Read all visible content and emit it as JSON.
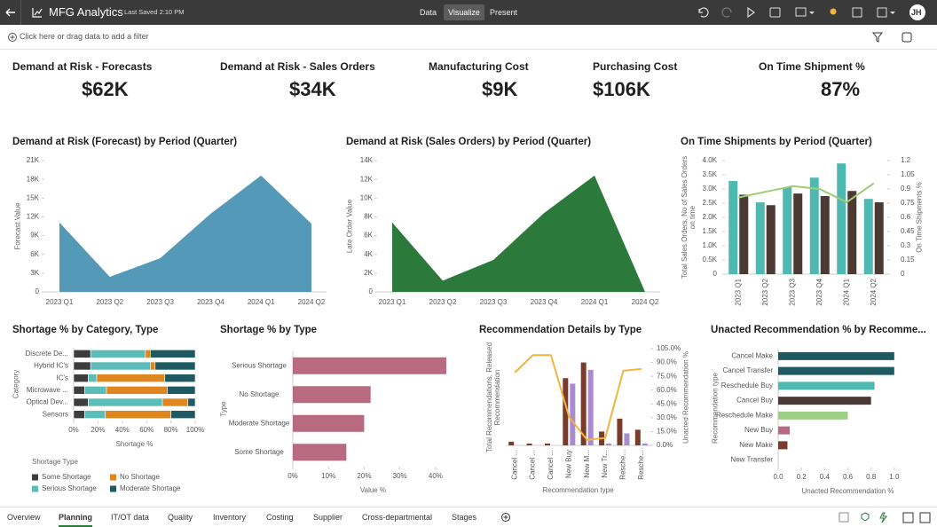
{
  "header": {
    "app_title": "MFG Analytics",
    "last_saved": "Last Saved 2:10 PM",
    "modes": [
      "Data",
      "Visualize",
      "Present"
    ],
    "active_mode": 1,
    "user_initials": "JH"
  },
  "filter_bar": {
    "placeholder": "Click here or drag data to add a filter"
  },
  "kpis": [
    {
      "label": "Demand at Risk - Forecasts",
      "value": "$62K"
    },
    {
      "label": "Demand at Risk - Sales Orders",
      "value": "$34K"
    },
    {
      "label": "Manufacturing Cost",
      "value": "$9K"
    },
    {
      "label": "Purchasing Cost",
      "value": "$106K"
    },
    {
      "label": "On Time Shipment %",
      "value": "87%"
    }
  ],
  "chart_data": [
    {
      "type": "area",
      "title": "Demand at Risk (Forecast) by Period (Quarter)",
      "ylabel": "Forecast Value",
      "categories": [
        "2023 Q1",
        "2023 Q2",
        "2023 Q3",
        "2023 Q4",
        "2024 Q1",
        "2024 Q2"
      ],
      "values": [
        11100,
        2400,
        5400,
        12500,
        18600,
        10900
      ],
      "color": "#5499b8",
      "ylim": [
        0,
        21000
      ],
      "yticks": [
        0,
        {
          "value": 3000,
          "label": "3K"
        },
        {
          "value": 6000,
          "label": "6K"
        },
        {
          "value": 9000,
          "label": "9K"
        },
        {
          "value": 12000,
          "label": "12K"
        },
        {
          "value": 15000,
          "label": "15K"
        },
        {
          "value": 18000,
          "label": "18K"
        },
        {
          "value": 21000,
          "label": "21K"
        }
      ],
      "grid": false
    },
    {
      "type": "area",
      "title": "Demand at Risk (Sales Orders) by Period (Quarter)",
      "ylabel": "Late Order Value",
      "categories": [
        "2023 Q1",
        "2023 Q2",
        "2023 Q3",
        "2023 Q4",
        "2024 Q1",
        "2024 Q2"
      ],
      "values": [
        7400,
        1200,
        3400,
        8400,
        12400,
        0
      ],
      "color": "#2b7a3b",
      "ylim": [
        0,
        14000
      ],
      "yticks": [
        0,
        {
          "value": 2000,
          "label": "2K"
        },
        {
          "value": 4000,
          "label": "4K"
        },
        {
          "value": 6000,
          "label": "6K"
        },
        {
          "value": 8000,
          "label": "8K"
        },
        {
          "value": 10000,
          "label": "10K"
        },
        {
          "value": 12000,
          "label": "12K"
        },
        {
          "value": 14000,
          "label": "14K"
        }
      ],
      "grid": false
    },
    {
      "type": "bar",
      "title": "On Time Shipments by Period (Quarter)",
      "ylabel": "Total Sales Orders, No of Sales Orders on time",
      "y2label": "On Time Shipments %",
      "categories": [
        "2023 Q1",
        "2023 Q2",
        "2023 Q3",
        "2023 Q4",
        "2024 Q1",
        "2024 Q2"
      ],
      "rotate_labels": true,
      "series": [
        {
          "color": "#4fb9b1",
          "values": [
            3280,
            2530,
            3060,
            3400,
            3900,
            2650
          ]
        },
        {
          "color": "#4a3a33",
          "values": [
            2800,
            2430,
            2840,
            2750,
            2930,
            2530
          ]
        },
        {
          "type": "line",
          "axis": "y2",
          "color": "#9dcc76",
          "values": [
            0.81,
            0.87,
            0.93,
            0.9,
            0.76,
            0.96
          ]
        }
      ],
      "ylim": [
        0,
        4000
      ],
      "yticks": [
        0,
        {
          "value": 500,
          "label": "0.5K"
        },
        {
          "value": 1000,
          "label": "1.0K"
        },
        {
          "value": 1500,
          "label": "1.5K"
        },
        {
          "value": 2000,
          "label": "2.0K"
        },
        {
          "value": 2500,
          "label": "2.5K"
        },
        {
          "value": 3000,
          "label": "3.0K"
        },
        {
          "value": 3500,
          "label": "3.5K"
        },
        {
          "value": 4000,
          "label": "4.0K"
        }
      ],
      "y2lim": [
        0,
        1.2
      ],
      "y2ticks": [
        0,
        0.15,
        0.3,
        0.45,
        0.6,
        0.75,
        0.9,
        1.05,
        1.2
      ],
      "grid": false
    },
    {
      "type": "bar",
      "orientation": "horizontal",
      "stacked": true,
      "title": "Shortage % by Category, Type",
      "xlabel": "Shortage %",
      "ylabel": "Category",
      "categories": [
        "Discrete De...",
        "Hybrid IC's",
        "IC's",
        "Microwave ...",
        "Optical Dev...",
        "Sensors"
      ],
      "series": [
        {
          "name": "Some Shortage",
          "color": "#3d3d3d",
          "values": [
            14,
            14,
            12,
            9,
            12,
            9
          ]
        },
        {
          "name": "Serious Shortage",
          "color": "#5bbcb8",
          "values": [
            45,
            49,
            7,
            18,
            61,
            17
          ]
        },
        {
          "name": "No Shortage",
          "color": "#e0861f",
          "values": [
            4,
            4,
            56,
            50,
            21,
            54
          ]
        },
        {
          "name": "Moderate Shortage",
          "color": "#1f5a63",
          "values": [
            37,
            33,
            25,
            23,
            6,
            20
          ]
        }
      ],
      "legend_title": "Shortage Type",
      "legend": "bottom",
      "xlim": [
        0,
        100
      ],
      "xticks": [
        {
          "value": 0,
          "label": "0%"
        },
        {
          "value": 20,
          "label": "20%"
        },
        {
          "value": 40,
          "label": "40%"
        },
        {
          "value": 60,
          "label": "60%"
        },
        {
          "value": 80,
          "label": "80%"
        },
        {
          "value": 100,
          "label": "100%"
        }
      ],
      "grid": false
    },
    {
      "type": "bar",
      "orientation": "horizontal",
      "title": "Shortage % by Type",
      "xlabel": "Value %",
      "ylabel": "Type",
      "categories": [
        "Serious Shortage",
        "No Shortage",
        "Moderate Shortage",
        "Some Shortage"
      ],
      "values": [
        43,
        21.8,
        20,
        15
      ],
      "color": "#b76a80",
      "xlim": [
        0,
        45
      ],
      "xticks": [
        {
          "value": 0,
          "label": "0%"
        },
        {
          "value": 10,
          "label": "10%"
        },
        {
          "value": 20,
          "label": "20%"
        },
        {
          "value": 30,
          "label": "30%"
        },
        {
          "value": 40,
          "label": "40%"
        }
      ],
      "grid": false
    },
    {
      "type": "bar",
      "title": "Recommendation Details by Type",
      "ylabel": "Total Recommendations, Released Recommendation",
      "y2label": "Unacted Recommendation %",
      "xlabel": "Recommendation type",
      "categories": [
        "Cancel ...",
        "Cancel ...",
        "Cancel ...",
        "New Buy",
        "New M...",
        "New Tr...",
        "Resche...",
        "Resche..."
      ],
      "rotate_labels": true,
      "series": [
        {
          "color": "#7a3b2a",
          "values": [
            4,
            2,
            2,
            73,
            90,
            15,
            29,
            17
          ]
        },
        {
          "color": "#a98bd1",
          "values": [
            0,
            0,
            0,
            67,
            82,
            2,
            13,
            2
          ]
        },
        {
          "type": "line",
          "axis": "y2",
          "color": "#f2b43e",
          "values": [
            79,
            98,
            98,
            31,
            6,
            8,
            81,
            83
          ]
        }
      ],
      "ylim": [
        0,
        105
      ],
      "y2lim": [
        0,
        105
      ],
      "y2ticks": [
        {
          "value": 0,
          "label": "0.0%"
        },
        {
          "value": 15,
          "label": "15.0%"
        },
        {
          "value": 30,
          "label": "30.0%"
        },
        {
          "value": 45,
          "label": "45.0%"
        },
        {
          "value": 60,
          "label": "60.0%"
        },
        {
          "value": 75,
          "label": "75.0%"
        },
        {
          "value": 90,
          "label": "90.0%"
        },
        {
          "value": 105,
          "label": "105.0%"
        }
      ],
      "grid": false
    },
    {
      "type": "bar",
      "orientation": "horizontal",
      "title": "Unacted Recommendation % by Recomme...",
      "xlabel": "Unacted Recommendation %",
      "ylabel": "Recommendation type",
      "categories": [
        "Cancel Make",
        "Cancel Transfer",
        "Reschedule Buy",
        "Cancel Buy",
        "Reschedule Make",
        "New Buy",
        "New Make",
        "New Transfer"
      ],
      "values": [
        1.0,
        1.0,
        0.83,
        0.8,
        0.6,
        0.1,
        0.08,
        0
      ],
      "colors": [
        "#1f5a63",
        "#1f5a63",
        "#4fb9b1",
        "#4a3a33",
        "#9fcf86",
        "#b76a80",
        "#7a3b2a",
        "#7a3b2a"
      ],
      "xlim": [
        0,
        1.2
      ],
      "xticks": [
        {
          "value": 0,
          "label": "0.0"
        },
        0.2,
        0.4,
        0.6,
        0.8,
        {
          "value": 1,
          "label": "1.0"
        }
      ],
      "grid": false
    }
  ],
  "tabs": {
    "items": [
      "Overview",
      "Planning",
      "IT/OT data",
      "Quality",
      "Inventory",
      "Costing",
      "Supplier",
      "Cross-departmental",
      "Stages"
    ],
    "active": 1
  }
}
